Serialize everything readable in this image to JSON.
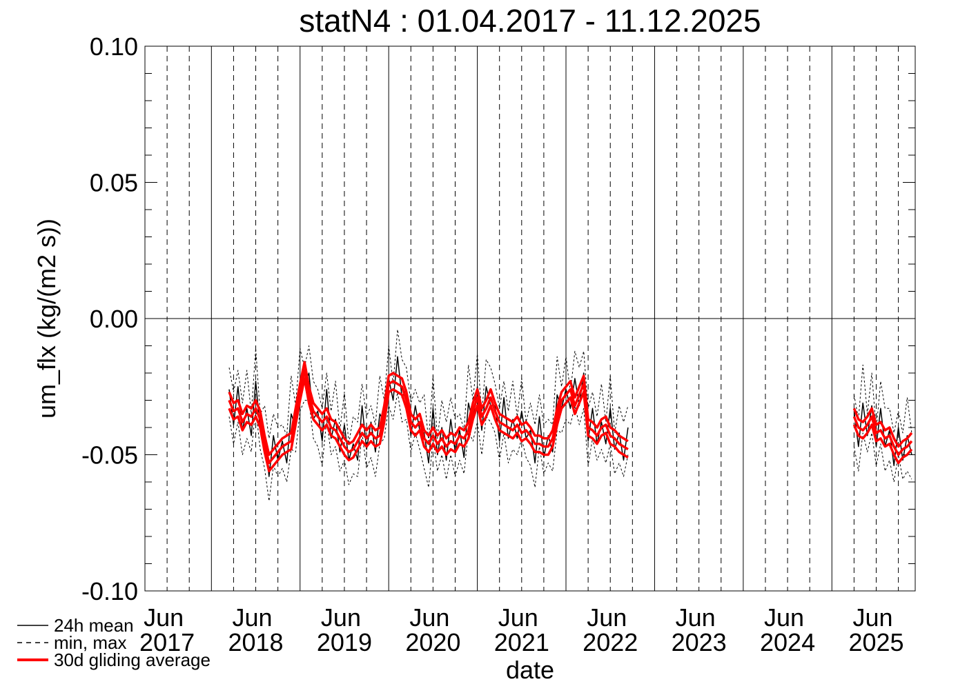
{
  "chart_data": {
    "type": "line",
    "title": "statN4 : 01.04.2017 - 11.12.2025",
    "xlabel": "date",
    "ylabel": "um_flx (kg/(m2 s))",
    "xlim": [
      2017.25,
      2025.94
    ],
    "ylim": [
      -0.1,
      0.1
    ],
    "xticks": [
      {
        "value": 2017.5,
        "label": "Jun 2017"
      },
      {
        "value": 2018.5,
        "label": "Jun 2018"
      },
      {
        "value": 2019.5,
        "label": "Jun 2019"
      },
      {
        "value": 2020.5,
        "label": "Jun 2020"
      },
      {
        "value": 2021.5,
        "label": "Jun 2021"
      },
      {
        "value": 2022.5,
        "label": "Jun 2022"
      },
      {
        "value": 2023.5,
        "label": "Jun 2023"
      },
      {
        "value": 2024.5,
        "label": "Jun 2024"
      },
      {
        "value": 2025.5,
        "label": "Jun 2025"
      }
    ],
    "x_year_lines": [
      2018,
      2019,
      2020,
      2021,
      2022,
      2023,
      2024,
      2025
    ],
    "x_quarter_lines": [
      2017.75,
      2018.25,
      2018.75,
      2019.25,
      2019.75,
      2020.25,
      2020.75,
      2021.25,
      2021.75,
      2022.25,
      2022.75,
      2023.25,
      2023.75,
      2024.25,
      2024.75,
      2025.25,
      2025.75
    ],
    "yticks": [
      {
        "value": -0.1,
        "label": "-0.10"
      },
      -0.05,
      {
        "value": 0,
        "label": "0.00"
      },
      0.05,
      {
        "value": 0.1,
        "label": "0.10"
      }
    ],
    "y_minor_ticks": [
      -0.09,
      -0.08,
      -0.07,
      -0.06,
      -0.04,
      -0.03,
      -0.02,
      -0.01,
      0.01,
      0.02,
      0.03,
      0.04,
      0.06,
      0.07,
      0.08,
      0.09
    ],
    "zero_line": true,
    "x": [
      2018.2,
      2018.25,
      2018.3,
      2018.35,
      2018.4,
      2018.45,
      2018.5,
      2018.55,
      2018.6,
      2018.65,
      2018.7,
      2018.75,
      2018.8,
      2018.85,
      2018.9,
      2018.95,
      2019.0,
      2019.05,
      2019.1,
      2019.15,
      2019.2,
      2019.25,
      2019.3,
      2019.35,
      2019.4,
      2019.45,
      2019.5,
      2019.55,
      2019.6,
      2019.65,
      2019.7,
      2019.75,
      2019.8,
      2019.85,
      2019.9,
      2019.95,
      2020.0,
      2020.05,
      2020.1,
      2020.15,
      2020.2,
      2020.25,
      2020.3,
      2020.35,
      2020.4,
      2020.45,
      2020.5,
      2020.55,
      2020.6,
      2020.65,
      2020.7,
      2020.75,
      2020.8,
      2020.85,
      2020.9,
      2020.95,
      2021.0,
      2021.05,
      2021.1,
      2021.15,
      2021.2,
      2021.25,
      2021.3,
      2021.35,
      2021.4,
      2021.45,
      2021.5,
      2021.55,
      2021.6,
      2021.65,
      2021.7,
      2021.75,
      2021.8,
      2021.85,
      2021.9,
      2021.95,
      2022.0,
      2022.05,
      2022.1,
      2022.15,
      2022.2,
      2022.25,
      2022.3,
      2022.35,
      2022.4,
      2022.45,
      2022.5,
      2022.55,
      2022.6,
      2022.65,
      2022.7,
      2024.0,
      2025.25,
      2025.3,
      2025.35,
      2025.4,
      2025.45,
      2025.5,
      2025.55,
      2025.6,
      2025.65,
      2025.7,
      2025.75,
      2025.8,
      2025.85,
      2025.9
    ],
    "series": [
      {
        "name": "24h mean",
        "color": "#000000",
        "style": "solid",
        "values": [
          -0.026,
          -0.039,
          -0.025,
          -0.041,
          -0.033,
          -0.043,
          -0.023,
          -0.041,
          -0.042,
          -0.058,
          -0.043,
          -0.052,
          -0.045,
          -0.053,
          -0.035,
          -0.04,
          -0.023,
          -0.024,
          -0.02,
          -0.037,
          -0.034,
          -0.045,
          -0.026,
          -0.044,
          -0.037,
          -0.049,
          -0.039,
          -0.052,
          -0.046,
          -0.052,
          -0.032,
          -0.048,
          -0.038,
          -0.049,
          -0.035,
          -0.038,
          -0.022,
          -0.03,
          -0.014,
          -0.029,
          -0.026,
          -0.043,
          -0.032,
          -0.041,
          -0.042,
          -0.053,
          -0.033,
          -0.05,
          -0.04,
          -0.052,
          -0.037,
          -0.049,
          -0.041,
          -0.051,
          -0.031,
          -0.038,
          -0.025,
          -0.041,
          -0.025,
          -0.032,
          -0.032,
          -0.045,
          -0.029,
          -0.044,
          -0.037,
          -0.044,
          -0.034,
          -0.044,
          -0.041,
          -0.053,
          -0.036,
          -0.051,
          -0.043,
          -0.049,
          -0.028,
          -0.033,
          -0.026,
          -0.033,
          -0.022,
          -0.032,
          -0.02,
          -0.045,
          -0.033,
          -0.046,
          -0.038,
          -0.046,
          -0.033,
          -0.048,
          -0.042,
          -0.052,
          -0.04,
          null,
          -0.034,
          -0.047,
          -0.031,
          -0.043,
          -0.032,
          -0.047,
          -0.033,
          -0.047,
          -0.041,
          -0.054,
          -0.04,
          -0.052,
          -0.043,
          -0.05
        ]
      },
      {
        "name": "min, max",
        "color": "#000000",
        "style": "dashed",
        "min": [
          -0.036,
          -0.046,
          -0.038,
          -0.05,
          -0.044,
          -0.049,
          -0.033,
          -0.048,
          -0.055,
          -0.067,
          -0.054,
          -0.058,
          -0.055,
          -0.06,
          -0.048,
          -0.049,
          -0.034,
          -0.03,
          -0.03,
          -0.044,
          -0.047,
          -0.054,
          -0.037,
          -0.05,
          -0.047,
          -0.056,
          -0.052,
          -0.061,
          -0.057,
          -0.058,
          -0.042,
          -0.055,
          -0.051,
          -0.058,
          -0.046,
          -0.044,
          -0.032,
          -0.037,
          -0.027,
          -0.038,
          -0.037,
          -0.049,
          -0.042,
          -0.048,
          -0.055,
          -0.062,
          -0.044,
          -0.056,
          -0.05,
          -0.059,
          -0.05,
          -0.058,
          -0.052,
          -0.057,
          -0.041,
          -0.045,
          -0.038,
          -0.05,
          -0.036,
          -0.038,
          -0.042,
          -0.052,
          -0.042,
          -0.053,
          -0.048,
          -0.05,
          -0.044,
          -0.051,
          -0.054,
          -0.062,
          -0.047,
          -0.057,
          -0.053,
          -0.056,
          -0.041,
          -0.042,
          -0.037,
          -0.039,
          -0.032,
          -0.039,
          -0.033,
          -0.054,
          -0.044,
          -0.052,
          -0.048,
          -0.053,
          -0.046,
          -0.057,
          -0.053,
          -0.058,
          -0.05,
          null,
          -0.047,
          -0.056,
          -0.042,
          -0.049,
          -0.042,
          -0.054,
          -0.046,
          -0.056,
          -0.052,
          -0.06,
          -0.05,
          -0.059,
          -0.056,
          -0.059
        ],
        "max": [
          -0.018,
          -0.027,
          -0.019,
          -0.031,
          -0.019,
          -0.035,
          -0.011,
          -0.035,
          -0.032,
          -0.044,
          -0.035,
          -0.04,
          -0.039,
          -0.043,
          -0.021,
          -0.032,
          -0.011,
          -0.018,
          -0.01,
          -0.023,
          -0.026,
          -0.033,
          -0.02,
          -0.034,
          -0.023,
          -0.041,
          -0.027,
          -0.046,
          -0.036,
          -0.038,
          -0.024,
          -0.036,
          -0.032,
          -0.039,
          -0.021,
          -0.03,
          -0.01,
          -0.024,
          -0.004,
          -0.015,
          -0.018,
          -0.031,
          -0.026,
          -0.031,
          -0.028,
          -0.045,
          -0.021,
          -0.044,
          -0.03,
          -0.038,
          -0.029,
          -0.037,
          -0.035,
          -0.041,
          -0.017,
          -0.03,
          -0.013,
          -0.035,
          -0.015,
          -0.018,
          -0.024,
          -0.033,
          -0.023,
          -0.034,
          -0.023,
          -0.036,
          -0.022,
          -0.038,
          -0.031,
          -0.039,
          -0.028,
          -0.039,
          -0.037,
          -0.039,
          -0.014,
          -0.025,
          -0.014,
          -0.027,
          -0.012,
          -0.018,
          -0.012,
          -0.033,
          -0.027,
          -0.036,
          -0.024,
          -0.038,
          -0.021,
          -0.042,
          -0.032,
          -0.038,
          -0.032,
          null,
          -0.028,
          -0.037,
          -0.017,
          -0.035,
          -0.02,
          -0.041,
          -0.023,
          -0.033,
          -0.033,
          -0.042,
          -0.034,
          -0.042,
          -0.029,
          -0.042
        ]
      },
      {
        "name": "30d gliding average",
        "color": "#ff0000",
        "style": "solid",
        "values": [
          -0.03,
          -0.034,
          -0.033,
          -0.038,
          -0.035,
          -0.036,
          -0.033,
          -0.037,
          -0.046,
          -0.053,
          -0.051,
          -0.049,
          -0.047,
          -0.046,
          -0.045,
          -0.036,
          -0.027,
          -0.019,
          -0.028,
          -0.034,
          -0.036,
          -0.038,
          -0.036,
          -0.04,
          -0.041,
          -0.044,
          -0.047,
          -0.049,
          -0.048,
          -0.045,
          -0.042,
          -0.044,
          -0.042,
          -0.044,
          -0.043,
          -0.035,
          -0.024,
          -0.023,
          -0.024,
          -0.025,
          -0.03,
          -0.038,
          -0.04,
          -0.038,
          -0.044,
          -0.046,
          -0.043,
          -0.046,
          -0.044,
          -0.047,
          -0.045,
          -0.046,
          -0.043,
          -0.044,
          -0.041,
          -0.034,
          -0.029,
          -0.036,
          -0.033,
          -0.029,
          -0.034,
          -0.038,
          -0.039,
          -0.04,
          -0.041,
          -0.039,
          -0.042,
          -0.041,
          -0.043,
          -0.046,
          -0.046,
          -0.047,
          -0.047,
          -0.044,
          -0.036,
          -0.03,
          -0.028,
          -0.026,
          -0.032,
          -0.028,
          -0.024,
          -0.04,
          -0.041,
          -0.043,
          -0.04,
          -0.039,
          -0.043,
          -0.044,
          -0.046,
          -0.047,
          -0.048,
          null,
          -0.036,
          -0.04,
          -0.041,
          -0.039,
          -0.036,
          -0.042,
          -0.041,
          -0.044,
          -0.043,
          -0.047,
          -0.05,
          -0.048,
          -0.047,
          -0.045
        ],
        "upper": [
          -0.027,
          -0.031,
          -0.03,
          -0.035,
          -0.032,
          -0.033,
          -0.03,
          -0.034,
          -0.043,
          -0.05,
          -0.048,
          -0.046,
          -0.044,
          -0.043,
          -0.042,
          -0.033,
          -0.024,
          -0.016,
          -0.025,
          -0.031,
          -0.033,
          -0.035,
          -0.033,
          -0.037,
          -0.038,
          -0.041,
          -0.044,
          -0.046,
          -0.045,
          -0.042,
          -0.039,
          -0.041,
          -0.039,
          -0.041,
          -0.04,
          -0.032,
          -0.021,
          -0.02,
          -0.021,
          -0.022,
          -0.027,
          -0.035,
          -0.037,
          -0.035,
          -0.041,
          -0.043,
          -0.04,
          -0.043,
          -0.041,
          -0.044,
          -0.042,
          -0.043,
          -0.04,
          -0.041,
          -0.038,
          -0.031,
          -0.026,
          -0.033,
          -0.03,
          -0.026,
          -0.031,
          -0.035,
          -0.036,
          -0.037,
          -0.038,
          -0.036,
          -0.039,
          -0.038,
          -0.04,
          -0.043,
          -0.043,
          -0.044,
          -0.044,
          -0.041,
          -0.033,
          -0.027,
          -0.025,
          -0.023,
          -0.029,
          -0.025,
          -0.021,
          -0.037,
          -0.038,
          -0.04,
          -0.037,
          -0.036,
          -0.04,
          -0.041,
          -0.043,
          -0.044,
          -0.045,
          null,
          -0.033,
          -0.037,
          -0.038,
          -0.036,
          -0.033,
          -0.039,
          -0.038,
          -0.041,
          -0.04,
          -0.044,
          -0.047,
          -0.045,
          -0.044,
          -0.042
        ],
        "lower": [
          -0.033,
          -0.037,
          -0.036,
          -0.041,
          -0.038,
          -0.039,
          -0.036,
          -0.04,
          -0.049,
          -0.056,
          -0.054,
          -0.052,
          -0.05,
          -0.049,
          -0.048,
          -0.039,
          -0.03,
          -0.022,
          -0.031,
          -0.037,
          -0.039,
          -0.041,
          -0.039,
          -0.043,
          -0.044,
          -0.047,
          -0.05,
          -0.052,
          -0.051,
          -0.048,
          -0.045,
          -0.047,
          -0.045,
          -0.047,
          -0.046,
          -0.038,
          -0.027,
          -0.026,
          -0.027,
          -0.028,
          -0.033,
          -0.041,
          -0.043,
          -0.041,
          -0.047,
          -0.049,
          -0.046,
          -0.049,
          -0.047,
          -0.05,
          -0.048,
          -0.049,
          -0.046,
          -0.047,
          -0.044,
          -0.037,
          -0.032,
          -0.039,
          -0.036,
          -0.032,
          -0.037,
          -0.041,
          -0.042,
          -0.043,
          -0.044,
          -0.042,
          -0.045,
          -0.044,
          -0.046,
          -0.049,
          -0.049,
          -0.05,
          -0.05,
          -0.047,
          -0.039,
          -0.033,
          -0.031,
          -0.029,
          -0.035,
          -0.031,
          -0.027,
          -0.043,
          -0.044,
          -0.046,
          -0.043,
          -0.042,
          -0.046,
          -0.047,
          -0.049,
          -0.05,
          -0.051,
          null,
          -0.039,
          -0.043,
          -0.044,
          -0.042,
          -0.039,
          -0.045,
          -0.044,
          -0.047,
          -0.046,
          -0.05,
          -0.053,
          -0.051,
          -0.05,
          -0.048
        ]
      }
    ]
  }
}
